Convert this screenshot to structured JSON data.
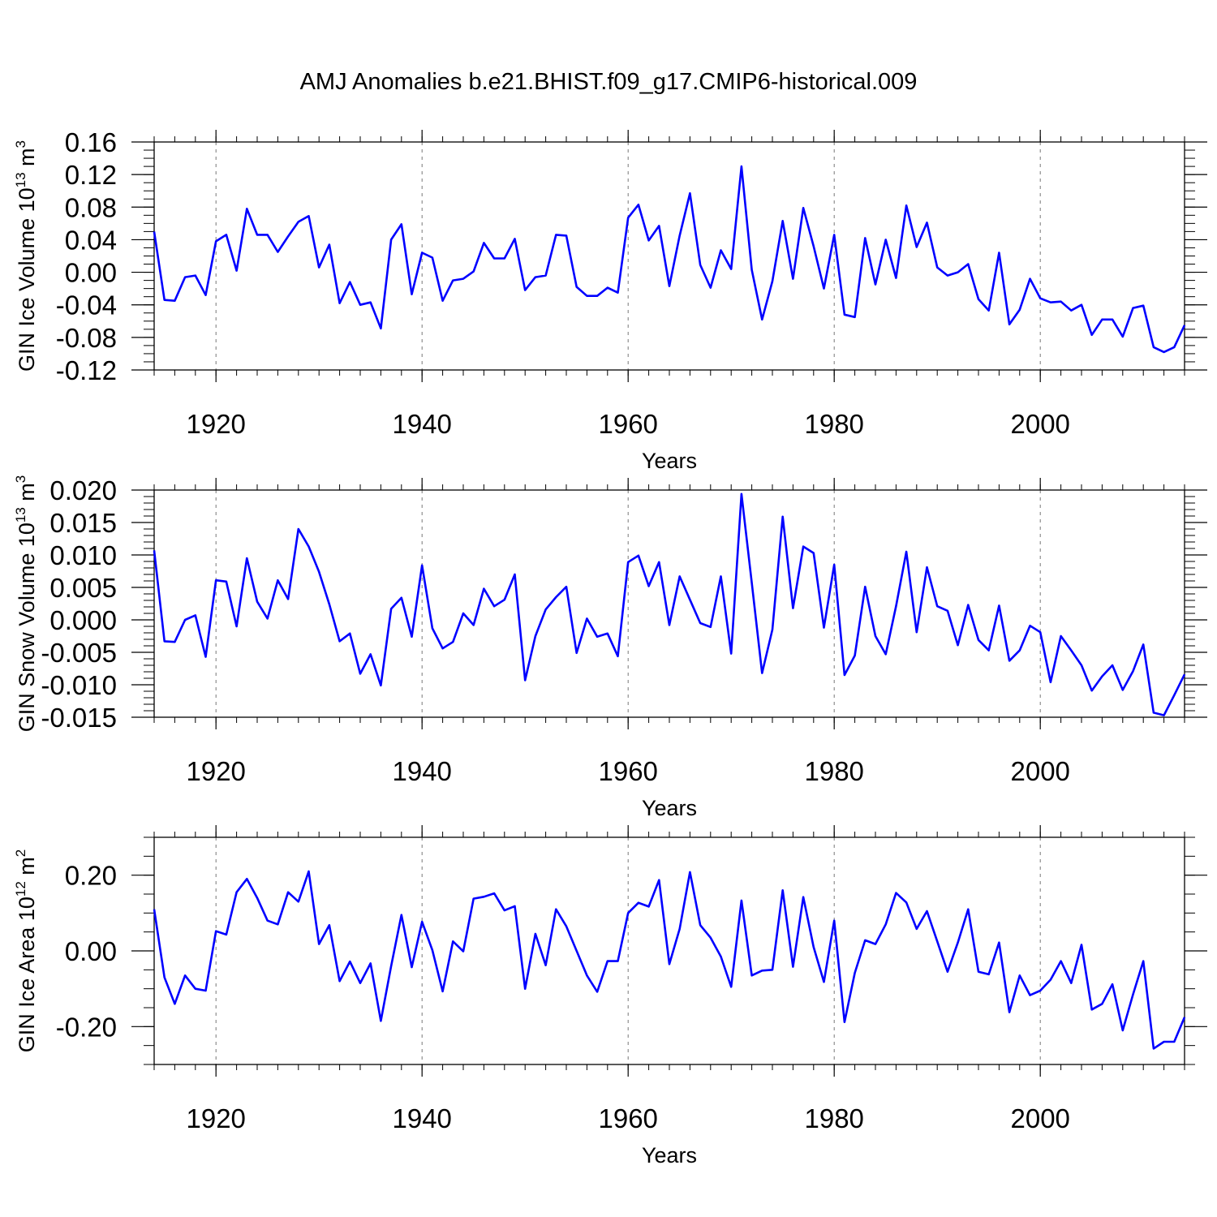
{
  "page_title": "AMJ Anomalies b.e21.BHIST.f09_g17.CMIP6-historical.009",
  "line_color": "#0000ff",
  "chart_data": [
    {
      "type": "line",
      "title": "AMJ Anomalies b.e21.BHIST.f09_g17.CMIP6-historical.009",
      "xlabel": "Years",
      "ylabel": "GIN Ice Volume 10",
      "ylabel_exp": "13",
      "ylabel_unit": " m",
      "ylabel_unit_exp": "3",
      "xlim": [
        1914,
        2014
      ],
      "ylim": [
        -0.12,
        0.16
      ],
      "x_ticks": [
        1920,
        1940,
        1960,
        1980,
        2000
      ],
      "x_tick_labels": [
        "1920",
        "1940",
        "1960",
        "1980",
        "2000"
      ],
      "y_ticks": [
        -0.12,
        -0.08,
        -0.04,
        0.0,
        0.04,
        0.08,
        0.12,
        0.16
      ],
      "y_tick_labels": [
        "-0.12",
        "-0.08",
        "-0.04",
        "0.00",
        "0.04",
        "0.08",
        "0.12",
        "0.16"
      ],
      "y_minor_step": 0.01,
      "x_start": 1914,
      "series": [
        {
          "name": "GIN Ice Volume",
          "values": [
            0.05,
            -0.034,
            -0.035,
            -0.006,
            -0.004,
            -0.028,
            0.038,
            0.046,
            0.002,
            0.078,
            0.046,
            0.046,
            0.025,
            0.044,
            0.062,
            0.069,
            0.006,
            0.034,
            -0.038,
            -0.012,
            -0.04,
            -0.037,
            -0.069,
            0.04,
            0.059,
            -0.027,
            0.024,
            0.018,
            -0.035,
            -0.01,
            -0.008,
            0.001,
            0.036,
            0.017,
            0.017,
            0.041,
            -0.022,
            -0.006,
            -0.004,
            0.046,
            0.045,
            -0.018,
            -0.029,
            -0.029,
            -0.019,
            -0.025,
            0.067,
            0.083,
            0.039,
            0.057,
            -0.017,
            0.045,
            0.097,
            0.009,
            -0.019,
            0.027,
            0.004,
            0.13,
            0.003,
            -0.058,
            -0.011,
            0.063,
            -0.008,
            0.079,
            0.032,
            -0.02,
            0.046,
            -0.052,
            -0.055,
            0.042,
            -0.015,
            0.04,
            -0.007,
            0.082,
            0.031,
            0.061,
            0.006,
            -0.004,
            0.0,
            0.01,
            -0.033,
            -0.047,
            0.024,
            -0.064,
            -0.046,
            -0.008,
            -0.032,
            -0.037,
            -0.036,
            -0.047,
            -0.04,
            -0.077,
            -0.058,
            -0.058,
            -0.079,
            -0.044,
            -0.041,
            -0.092,
            -0.098,
            -0.092,
            -0.065
          ]
        }
      ]
    },
    {
      "type": "line",
      "xlabel": "Years",
      "ylabel": "GIN Snow Volume 10",
      "ylabel_exp": "13",
      "ylabel_unit": " m",
      "ylabel_unit_exp": "3",
      "xlim": [
        1914,
        2014
      ],
      "ylim": [
        -0.015,
        0.02
      ],
      "x_ticks": [
        1920,
        1940,
        1960,
        1980,
        2000
      ],
      "x_tick_labels": [
        "1920",
        "1940",
        "1960",
        "1980",
        "2000"
      ],
      "y_ticks": [
        -0.015,
        -0.01,
        -0.005,
        0.0,
        0.005,
        0.01,
        0.015,
        0.02
      ],
      "y_tick_labels": [
        "-0.015",
        "-0.010",
        "-0.005",
        "0.000",
        "0.005",
        "0.010",
        "0.015",
        "0.020"
      ],
      "y_minor_step": 0.001,
      "x_start": 1914,
      "series": [
        {
          "name": "GIN Snow Volume",
          "values": [
            0.0107,
            -0.0033,
            -0.0034,
            0.0,
            0.0007,
            -0.0057,
            0.0061,
            0.0059,
            -0.001,
            0.0095,
            0.0028,
            0.0002,
            0.0061,
            0.0032,
            0.014,
            0.0113,
            0.0074,
            0.0024,
            -0.0033,
            -0.0021,
            -0.0083,
            -0.0053,
            -0.0101,
            0.0017,
            0.0034,
            -0.0026,
            0.0084,
            -0.0013,
            -0.0044,
            -0.0034,
            0.001,
            -0.0008,
            0.0048,
            0.0021,
            0.0031,
            0.007,
            -0.0093,
            -0.0025,
            0.0016,
            0.0035,
            0.0051,
            -0.0051,
            0.0002,
            -0.0026,
            -0.0021,
            -0.0056,
            0.0089,
            0.0099,
            0.0052,
            0.0089,
            -0.0008,
            0.0067,
            0.0031,
            -0.0005,
            -0.0011,
            0.0067,
            -0.0052,
            0.0194,
            0.0057,
            -0.0082,
            -0.0015,
            0.0159,
            0.0018,
            0.0113,
            0.0103,
            -0.0012,
            0.0085,
            -0.0085,
            -0.0055,
            0.0051,
            -0.0025,
            -0.0053,
            0.0021,
            0.0105,
            -0.0019,
            0.0081,
            0.0021,
            0.0014,
            -0.0039,
            0.0023,
            -0.0031,
            -0.0047,
            0.0022,
            -0.0063,
            -0.0047,
            -0.0009,
            -0.0019,
            -0.0096,
            -0.0025,
            -0.0047,
            -0.007,
            -0.0109,
            -0.0087,
            -0.007,
            -0.0108,
            -0.0079,
            -0.0038,
            -0.0143,
            -0.0147,
            -0.0116,
            -0.0084
          ]
        }
      ]
    },
    {
      "type": "line",
      "xlabel": "Years",
      "ylabel": "GIN Ice Area 10",
      "ylabel_exp": "12",
      "ylabel_unit": " m",
      "ylabel_unit_exp": "2",
      "xlim": [
        1914,
        2014
      ],
      "ylim": [
        -0.3,
        0.3
      ],
      "x_ticks": [
        1920,
        1940,
        1960,
        1980,
        2000
      ],
      "x_tick_labels": [
        "1920",
        "1940",
        "1960",
        "1980",
        "2000"
      ],
      "y_ticks": [
        -0.2,
        0.0,
        0.2
      ],
      "y_tick_labels": [
        "-0.20",
        "0.00",
        "0.20"
      ],
      "y_minor_step": 0.05,
      "x_start": 1914,
      "series": [
        {
          "name": "GIN Ice Area",
          "values": [
            0.11,
            -0.07,
            -0.14,
            -0.065,
            -0.1,
            -0.105,
            0.052,
            0.043,
            0.155,
            0.19,
            0.14,
            0.08,
            0.07,
            0.155,
            0.13,
            0.21,
            0.018,
            0.068,
            -0.08,
            -0.028,
            -0.085,
            -0.033,
            -0.185,
            -0.04,
            0.095,
            -0.043,
            0.077,
            0.002,
            -0.107,
            0.025,
            -0.001,
            0.138,
            0.143,
            0.152,
            0.107,
            0.118,
            -0.1,
            0.045,
            -0.038,
            0.11,
            0.065,
            0.0,
            -0.065,
            -0.108,
            -0.027,
            -0.027,
            0.1,
            0.127,
            0.117,
            0.187,
            -0.035,
            0.058,
            0.208,
            0.068,
            0.035,
            -0.015,
            -0.095,
            0.133,
            -0.065,
            -0.052,
            -0.05,
            0.16,
            -0.042,
            0.142,
            0.01,
            -0.082,
            0.08,
            -0.188,
            -0.058,
            0.028,
            0.018,
            0.07,
            0.153,
            0.128,
            0.058,
            0.105,
            0.025,
            -0.055,
            0.022,
            0.11,
            -0.055,
            -0.062,
            0.022,
            -0.162,
            -0.065,
            -0.117,
            -0.105,
            -0.076,
            -0.027,
            -0.085,
            0.016,
            -0.155,
            -0.14,
            -0.088,
            -0.21,
            -0.115,
            -0.027,
            -0.258,
            -0.24,
            -0.24,
            -0.175
          ]
        }
      ]
    }
  ]
}
